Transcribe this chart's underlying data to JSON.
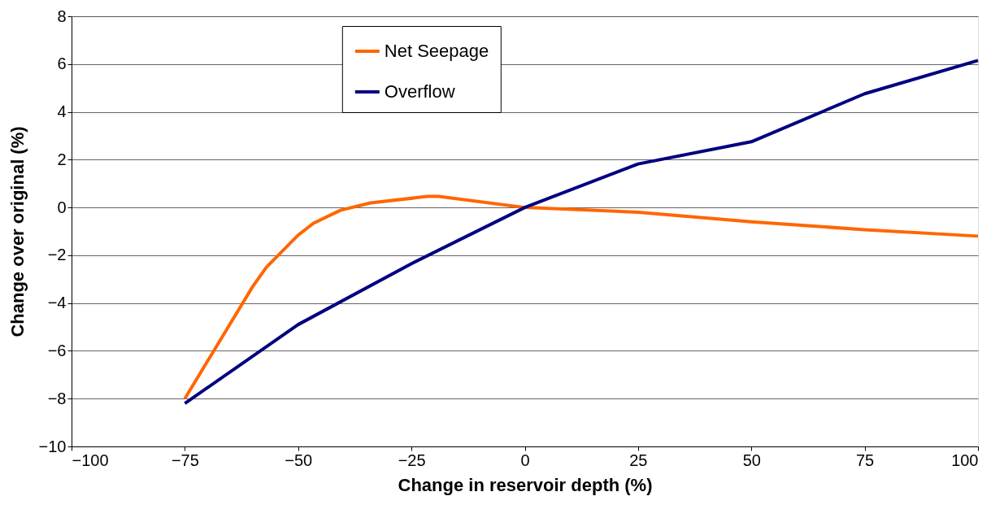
{
  "chart_data": {
    "type": "line",
    "xlabel": "Change in reservoir depth (%)",
    "ylabel": "Change over  original (%)",
    "xlim": [
      -100,
      100
    ],
    "xticks": [
      -100,
      -75,
      -50,
      -25,
      0,
      25,
      50,
      75,
      100
    ],
    "ylim": [
      -10,
      8
    ],
    "yticks": [
      -10,
      -8,
      -6,
      -4,
      -2,
      0,
      2,
      4,
      6,
      8
    ],
    "grid": "y",
    "legend": "top",
    "marker": "none",
    "line_style": "solid",
    "series": [
      {
        "name": "Net Seepage",
        "color": "#ff6600",
        "x": [
          -75,
          -60,
          -57,
          -50,
          -46.6,
          -40.7,
          -34,
          -21.5,
          -19,
          0,
          25,
          50,
          75,
          100
        ],
        "values": [
          -8.0,
          -3.3,
          -2.5,
          -1.16,
          -0.66,
          -0.12,
          0.19,
          0.46,
          0.46,
          0,
          -0.2,
          -0.6,
          -0.93,
          -1.2
        ]
      },
      {
        "name": "Overflow",
        "color": "#000080",
        "x": [
          -75,
          -50,
          -25,
          0,
          25,
          50,
          75,
          100
        ],
        "values": [
          -8.2,
          -4.9,
          -2.35,
          0,
          1.82,
          2.75,
          4.76,
          6.15
        ]
      }
    ]
  }
}
